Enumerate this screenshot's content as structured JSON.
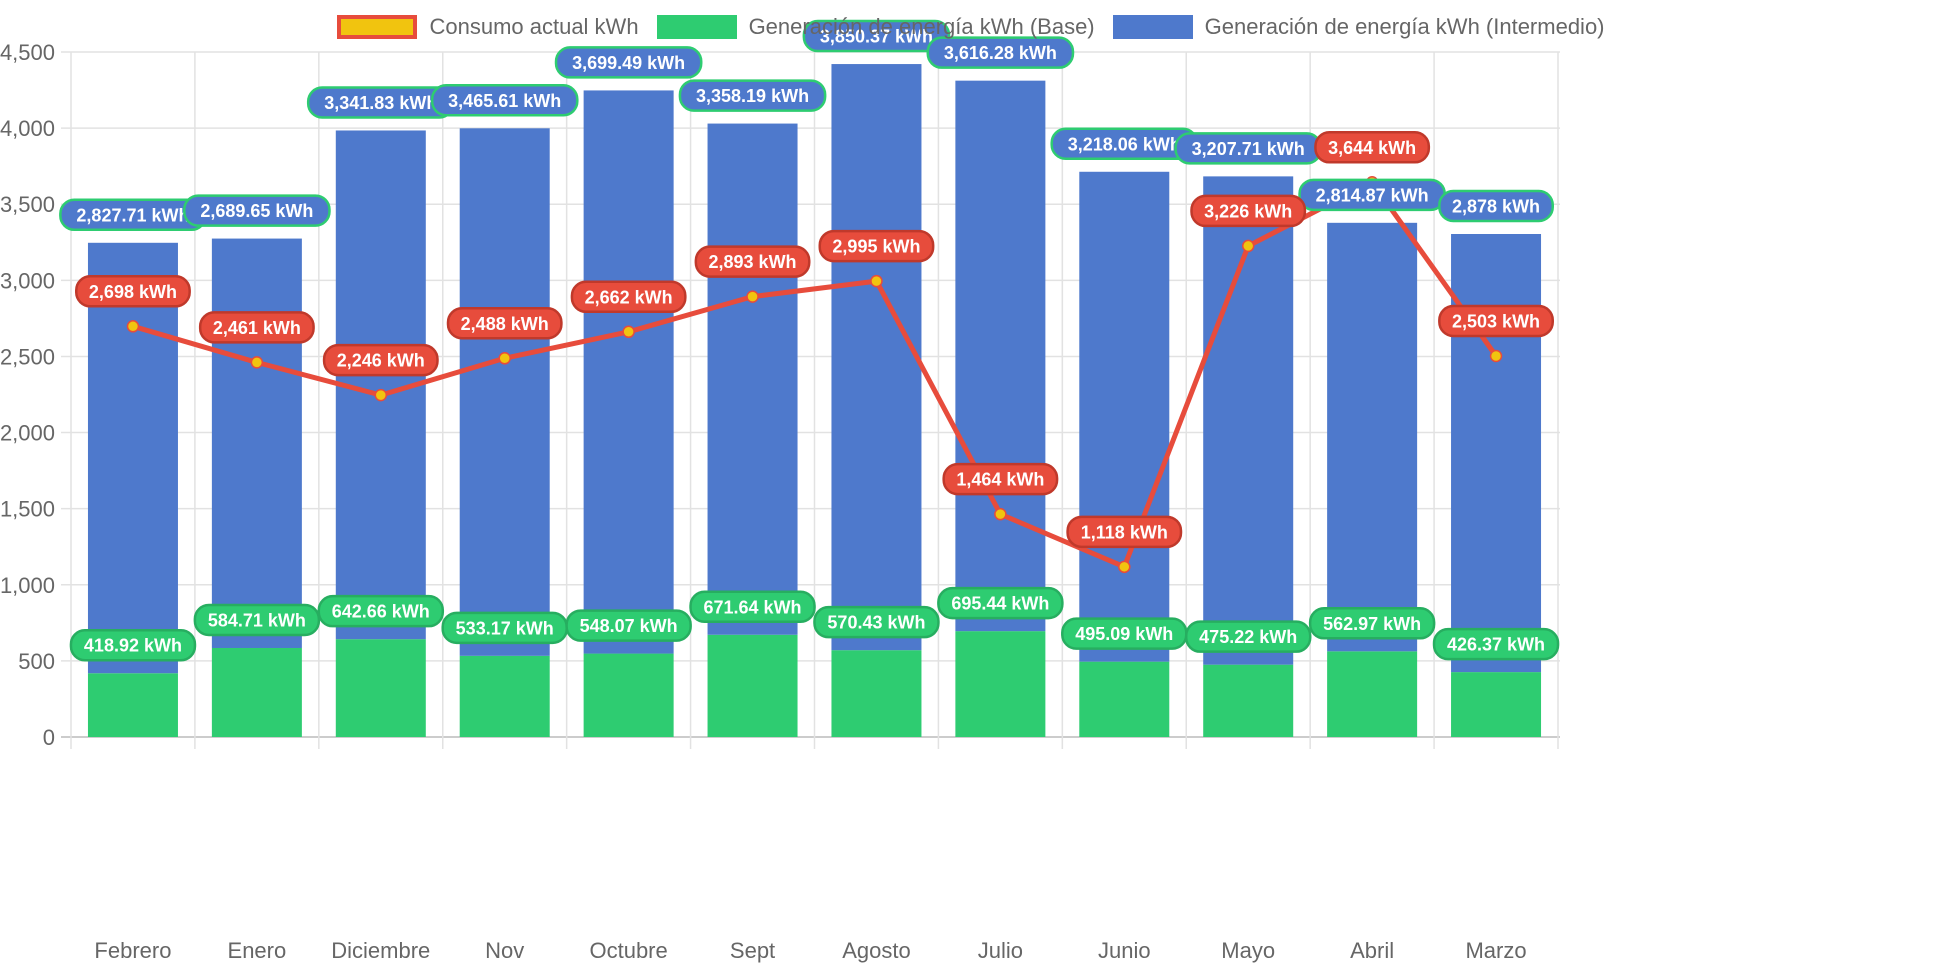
{
  "chart_data": {
    "type": "bar",
    "stacked": true,
    "title": "",
    "xlabel": "",
    "ylabel": "",
    "ylim": [
      0,
      4500
    ],
    "yticks": [
      0,
      500,
      1000,
      1500,
      2000,
      2500,
      3000,
      3500,
      4000,
      4500
    ],
    "ytick_labels": [
      "0",
      "500",
      "1,000",
      "1,500",
      "2,000",
      "2,500",
      "3,000",
      "3,500",
      "4,000",
      "4,500"
    ],
    "grid": true,
    "legend_position": "top",
    "categories": [
      "Febrero",
      "Enero",
      "Diciembre",
      "Nov",
      "Octubre",
      "Sept",
      "Agosto",
      "Julio",
      "Junio",
      "Mayo",
      "Abril",
      "Marzo"
    ],
    "series": [
      {
        "name": "Consumo actual kWh",
        "type": "line",
        "color": "#e74c3c",
        "point_color": "#f1c40f",
        "values": [
          2698,
          2461,
          2246,
          2488,
          2662,
          2893,
          2995,
          1464,
          1118,
          3226,
          3644,
          2503
        ],
        "labels": [
          "2,698 kWh",
          "2,461 kWh",
          "2,246 kWh",
          "2,488 kWh",
          "2,662 kWh",
          "2,893 kWh",
          "2,995 kWh",
          "1,464 kWh",
          "1,118 kWh",
          "3,226 kWh",
          "3,644 kWh",
          "2,503 kWh"
        ]
      },
      {
        "name": "Generación de energía kWh (Base)",
        "type": "bar",
        "color": "#2ecc71",
        "values": [
          418.92,
          584.71,
          642.66,
          533.17,
          548.07,
          671.64,
          570.43,
          695.44,
          495.09,
          475.22,
          562.97,
          426.37
        ],
        "labels": [
          "418.92 kWh",
          "584.71 kWh",
          "642.66 kWh",
          "533.17 kWh",
          "548.07 kWh",
          "671.64 kWh",
          "570.43 kWh",
          "695.44 kWh",
          "495.09 kWh",
          "475.22 kWh",
          "562.97 kWh",
          "426.37 kWh"
        ]
      },
      {
        "name": "Generación de energía kWh (Intermedio)",
        "type": "bar",
        "color": "#4e79cc",
        "values": [
          2827.71,
          2689.65,
          3341.83,
          3465.61,
          3699.49,
          3358.19,
          3850.37,
          3616.28,
          3218.06,
          3207.71,
          2814.87,
          2878
        ],
        "labels": [
          "2,827.71 kWh",
          "2,689.65 kWh",
          "3,341.83 kWh",
          "3,465.61 kWh",
          "3,699.49 kWh",
          "3,358.19 kWh",
          "3,850.37 kWh",
          "3,616.28 kWh",
          "3,218.06 kWh",
          "3,207.71 kWh",
          "2,814.87 kWh",
          "2,878 kWh"
        ]
      }
    ]
  },
  "legend": {
    "items": [
      {
        "label": "Consumo actual kWh",
        "fill": "#f1c40f",
        "border": "#e74c3c"
      },
      {
        "label": "Generación de energía kWh (Base)",
        "fill": "#2ecc71",
        "border": "#2ecc71"
      },
      {
        "label": "Generación de energía kWh (Intermedio)",
        "fill": "#4e79cc",
        "border": "#4e79cc"
      }
    ]
  }
}
